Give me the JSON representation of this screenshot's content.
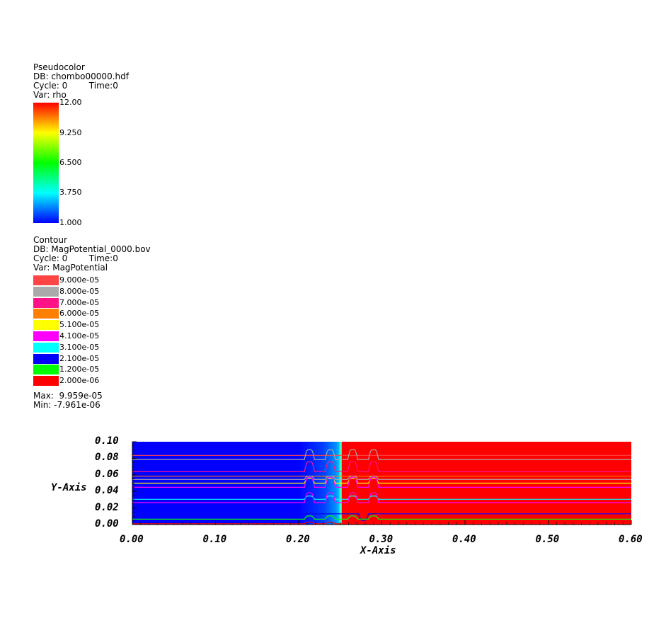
{
  "pseudocolor_legend": {
    "title": "Pseudocolor",
    "db": "DB: chombo00000.hdf",
    "cycle": "Cycle: 0        Time:0",
    "var": "Var: rho",
    "ticks": [
      "12.00",
      "9.250",
      "6.500",
      "3.750",
      "1.000"
    ],
    "range": [
      1.0,
      12.0
    ]
  },
  "contour_legend": {
    "title": "Contour",
    "db": "DB: MagPotential_0000.bov",
    "cycle": "Cycle: 0        Time:0",
    "var": "Var: MagPotential",
    "levels": [
      {
        "label": "9.000e-05",
        "color": "#ff4444"
      },
      {
        "label": "8.000e-05",
        "color": "#aaaaaa"
      },
      {
        "label": "7.000e-05",
        "color": "#ff1188"
      },
      {
        "label": "6.000e-05",
        "color": "#ff8000"
      },
      {
        "label": "5.100e-05",
        "color": "#ffff00"
      },
      {
        "label": "4.100e-05",
        "color": "#ff00ff"
      },
      {
        "label": "3.100e-05",
        "color": "#00ffff"
      },
      {
        "label": "2.100e-05",
        "color": "#0000ff"
      },
      {
        "label": "1.200e-05",
        "color": "#00ff00"
      },
      {
        "label": "2.000e-06",
        "color": "#ff0000"
      }
    ],
    "max": "Max:  9.959e-05",
    "min": "Min: -7.961e-06"
  },
  "chart_data": {
    "type": "heatmap",
    "xlabel": "X-Axis",
    "ylabel": "Y-Axis",
    "xlim": [
      0.0,
      0.6
    ],
    "ylim": [
      0.0,
      0.1
    ],
    "x_ticks": [
      "0.00",
      "0.10",
      "0.20",
      "0.30",
      "0.40",
      "0.50",
      "0.60"
    ],
    "y_ticks": [
      "0.00",
      "0.02",
      "0.04",
      "0.06",
      "0.08",
      "0.10"
    ],
    "field": {
      "variable": "rho",
      "left_value": 1.0,
      "right_value": 12.0,
      "interface_x": 0.25,
      "ramp_start_x": 0.2
    },
    "contour_lines": [
      {
        "y": 0.0835,
        "color": "#ff4444",
        "bumps_left": [],
        "bumps_right": []
      },
      {
        "y": 0.0785,
        "color": "#aaaaaa",
        "bumps_left": [
          0.213,
          0.238
        ],
        "bumps_right": [
          0.265,
          0.29
        ],
        "amp": 0.012
      },
      {
        "y": 0.064,
        "color": "#ff1188",
        "bumps_left": [
          0.213,
          0.238
        ],
        "bumps_right": [
          0.265,
          0.29
        ],
        "amp": 0.012
      },
      {
        "y": 0.0585,
        "color": "#ff8000",
        "bumps_left": [],
        "bumps_right": []
      },
      {
        "y": 0.0545,
        "color": "#aaaaaa",
        "bumps_left": [
          0.213,
          0.238
        ],
        "bumps_right": [
          0.265,
          0.29
        ],
        "amp": 0.004
      },
      {
        "y": 0.05,
        "color": "#ffff00",
        "bumps_left": [
          0.213,
          0.238
        ],
        "bumps_right": [
          0.265,
          0.29
        ],
        "amp": 0.006
      },
      {
        "y": 0.045,
        "color": "#ff00ff",
        "bumps_left": [
          0.213,
          0.238
        ],
        "bumps_right": [
          0.265,
          0.29
        ],
        "amp": 0.012
      },
      {
        "y": 0.0305,
        "color": "#00ffff",
        "bumps_left": [
          0.213,
          0.238
        ],
        "bumps_right": [
          0.265,
          0.29
        ],
        "amp": 0.004
      },
      {
        "y": 0.0265,
        "color": "#ff00ff",
        "bumps_left": [
          0.213,
          0.238
        ],
        "bumps_right": [
          0.265,
          0.29
        ],
        "amp": 0.012
      },
      {
        "y": 0.013,
        "color": "#0000ff",
        "bumps_left": [],
        "bumps_right": [
          0.278
        ],
        "amp": 0.008
      },
      {
        "y": 0.0065,
        "color": "#00ff00",
        "bumps_left": [
          0.213,
          0.238
        ],
        "bumps_right": [
          0.265,
          0.29
        ],
        "amp": 0.004
      },
      {
        "y": 0.001,
        "color": "#ff0000",
        "bumps_left": [
          0.213,
          0.238
        ],
        "bumps_right": [
          0.265,
          0.29
        ],
        "amp": 0.002
      }
    ]
  }
}
